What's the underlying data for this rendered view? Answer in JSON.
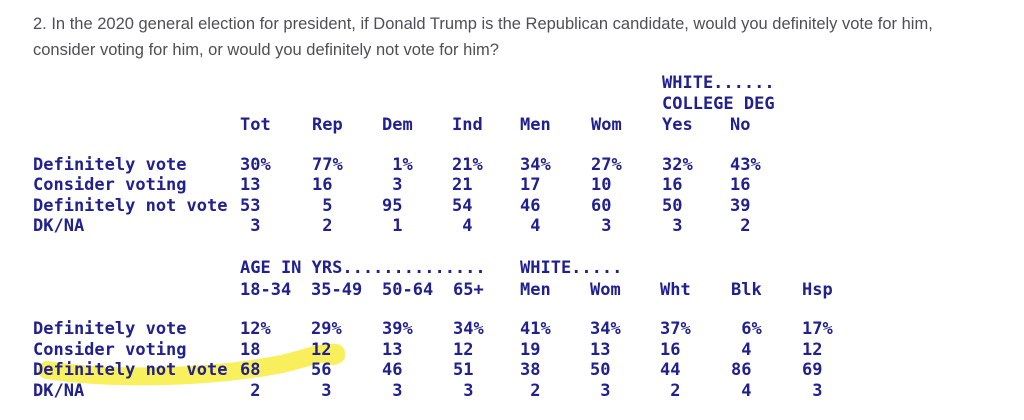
{
  "question": {
    "lines": [
      "2. In the 2020 general election for president, if Donald Trump is the Republican candidate, would you definitely vote for him,",
      "consider voting for him, or would you definitely not vote for him?"
    ]
  },
  "colors": {
    "table_text": "#20208e",
    "question_text": "#4e4f53",
    "highlight": "#f8ec35",
    "background": "#ffffff"
  },
  "highlight": {
    "type": "marker-stroke",
    "table_index": 1,
    "target_row": "Definitely not vote",
    "covers": "row label and first value (68)"
  },
  "tables": [
    {
      "name": "party-gender-white-college",
      "span_headers": [
        {
          "text": "WHITE......",
          "col_index": 6,
          "row": 0
        },
        {
          "text": "COLLEGE DEG",
          "col_index": 6,
          "row": 1
        }
      ],
      "columns": [
        "Tot",
        "Rep",
        "Dem",
        "Ind",
        "Men",
        "Wom",
        "Yes",
        "No"
      ],
      "rows": [
        {
          "label": "Definitely vote",
          "values": [
            "30%",
            "77%",
            "1%",
            "21%",
            "34%",
            "27%",
            "32%",
            "43%"
          ]
        },
        {
          "label": "Consider voting",
          "values": [
            "13",
            "16",
            "3",
            "21",
            "17",
            "10",
            "16",
            "16"
          ]
        },
        {
          "label": "Definitely not vote",
          "values": [
            "53",
            "5",
            "95",
            "54",
            "46",
            "60",
            "50",
            "39"
          ]
        },
        {
          "label": "DK/NA",
          "values": [
            "3",
            "2",
            "1",
            "4",
            "4",
            "3",
            "3",
            "2"
          ]
        }
      ]
    },
    {
      "name": "age-white-gender-race",
      "span_headers": [
        {
          "text": "AGE IN YRS..............",
          "col_index": 0,
          "row": 0
        },
        {
          "text": "WHITE.....",
          "col_index": 4,
          "row": 0
        }
      ],
      "columns": [
        "18-34",
        "35-49",
        "50-64",
        "65+",
        "Men",
        "Wom",
        "Wht",
        "Blk",
        "Hsp"
      ],
      "rows": [
        {
          "label": "Definitely vote",
          "values": [
            "12%",
            "29%",
            "39%",
            "34%",
            "41%",
            "34%",
            "37%",
            "6%",
            "17%"
          ]
        },
        {
          "label": "Consider voting",
          "values": [
            "18",
            "12",
            "13",
            "12",
            "19",
            "13",
            "16",
            "4",
            "12"
          ]
        },
        {
          "label": "Definitely not vote",
          "values": [
            "68",
            "56",
            "46",
            "51",
            "38",
            "50",
            "44",
            "86",
            "69"
          ],
          "highlighted": true
        },
        {
          "label": "DK/NA",
          "values": [
            "2",
            "3",
            "3",
            "3",
            "2",
            "3",
            "2",
            "4",
            "3"
          ]
        }
      ]
    }
  ]
}
